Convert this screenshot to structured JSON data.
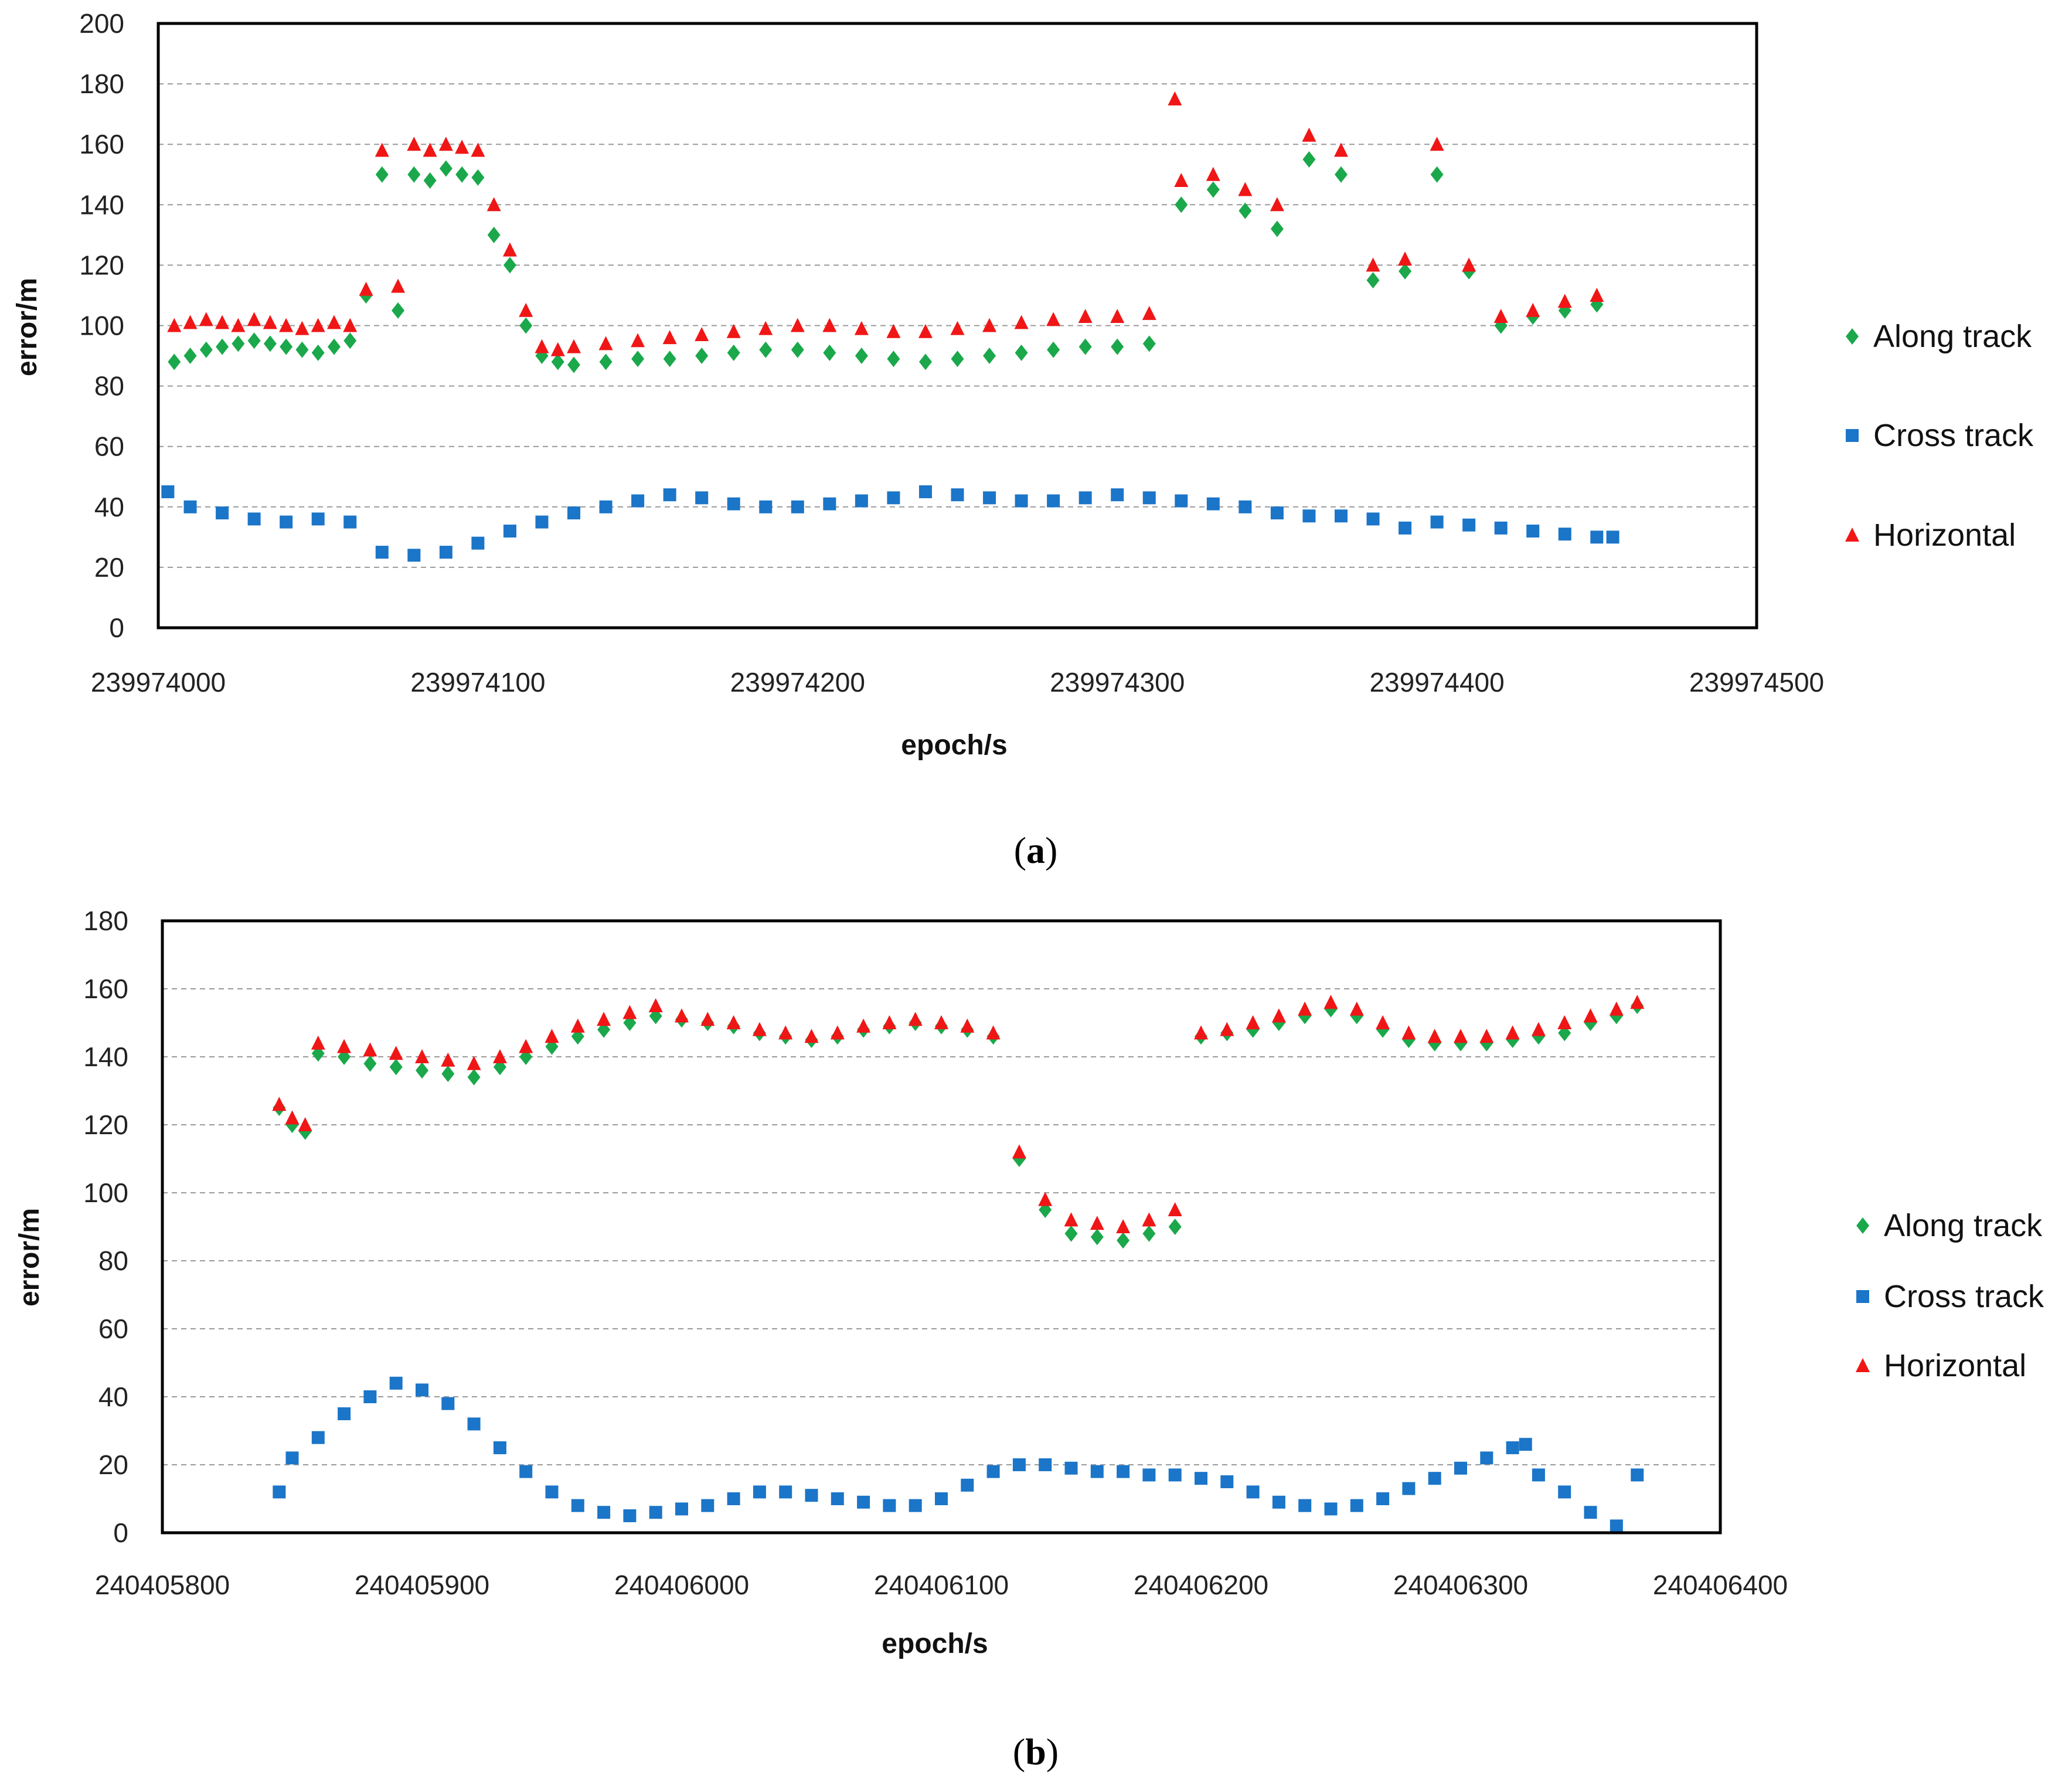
{
  "chart_data": [
    {
      "type": "scatter",
      "panel_label": "a",
      "xlabel": "epoch/s",
      "ylabel": "error/m",
      "xlim": [
        239974000,
        239974500
      ],
      "ylim": [
        0,
        200
      ],
      "xticks": [
        "239974000",
        "239974100",
        "239974200",
        "239974300",
        "239974400",
        "239974500"
      ],
      "yticks": [
        "0",
        "20",
        "40",
        "60",
        "80",
        "100",
        "120",
        "140",
        "160",
        "180",
        "200"
      ],
      "grid": "horizontal dashed",
      "legend_position": "right",
      "series": [
        {
          "name": "Along track",
          "marker": "diamond",
          "color": "#1aa84b",
          "x": [
            239974005,
            239974010,
            239974015,
            239974020,
            239974025,
            239974030,
            239974035,
            239974040,
            239974045,
            239974050,
            239974055,
            239974060,
            239974065,
            239974070,
            239974075,
            239974080,
            239974085,
            239974090,
            239974095,
            239974100,
            239974105,
            239974110,
            239974115,
            239974120,
            239974125,
            239974130,
            239974140,
            239974150,
            239974160,
            239974170,
            239974180,
            239974190,
            239974200,
            239974210,
            239974220,
            239974230,
            239974240,
            239974250,
            239974260,
            239974270,
            239974280,
            239974290,
            239974300,
            239974310,
            239974320,
            239974330,
            239974340,
            239974350,
            239974360,
            239974370,
            239974380,
            239974390,
            239974400,
            239974410,
            239974420,
            239974430,
            239974440,
            239974450
          ],
          "y": [
            88,
            90,
            92,
            93,
            94,
            95,
            94,
            93,
            92,
            91,
            93,
            95,
            110,
            150,
            105,
            150,
            148,
            152,
            150,
            149,
            130,
            120,
            100,
            90,
            88,
            87,
            88,
            89,
            89,
            90,
            91,
            92,
            92,
            91,
            90,
            89,
            88,
            89,
            90,
            91,
            92,
            93,
            93,
            94,
            140,
            145,
            138,
            132,
            155,
            150,
            115,
            118,
            150,
            118,
            100,
            103,
            105,
            107
          ]
        },
        {
          "name": "Cross track",
          "marker": "square",
          "color": "#1b75c8",
          "x": [
            239974003,
            239974010,
            239974020,
            239974030,
            239974040,
            239974050,
            239974060,
            239974070,
            239974080,
            239974090,
            239974100,
            239974110,
            239974120,
            239974130,
            239974140,
            239974150,
            239974160,
            239974170,
            239974180,
            239974190,
            239974200,
            239974210,
            239974220,
            239974230,
            239974240,
            239974250,
            239974260,
            239974270,
            239974280,
            239974290,
            239974300,
            239974310,
            239974320,
            239974330,
            239974340,
            239974350,
            239974360,
            239974370,
            239974380,
            239974390,
            239974400,
            239974410,
            239974420,
            239974430,
            239974440,
            239974450,
            239974455
          ],
          "y": [
            45,
            40,
            38,
            36,
            35,
            36,
            35,
            25,
            24,
            25,
            28,
            32,
            35,
            38,
            40,
            42,
            44,
            43,
            41,
            40,
            40,
            41,
            42,
            43,
            45,
            44,
            43,
            42,
            42,
            43,
            44,
            43,
            42,
            41,
            40,
            38,
            37,
            37,
            36,
            33,
            35,
            34,
            33,
            32,
            31,
            30,
            30
          ]
        },
        {
          "name": "Horizontal",
          "marker": "triangle",
          "color": "#f01616",
          "x": [
            239974005,
            239974010,
            239974015,
            239974020,
            239974025,
            239974030,
            239974035,
            239974040,
            239974045,
            239974050,
            239974055,
            239974060,
            239974065,
            239974070,
            239974075,
            239974080,
            239974085,
            239974090,
            239974095,
            239974100,
            239974105,
            239974110,
            239974115,
            239974120,
            239974125,
            239974130,
            239974140,
            239974150,
            239974160,
            239974170,
            239974180,
            239974190,
            239974200,
            239974210,
            239974220,
            239974230,
            239974240,
            239974250,
            239974260,
            239974270,
            239974280,
            239974290,
            239974300,
            239974310,
            239974318,
            239974320,
            239974330,
            239974340,
            239974350,
            239974360,
            239974370,
            239974380,
            239974390,
            239974400,
            239974410,
            239974420,
            239974430,
            239974440,
            239974450
          ],
          "y": [
            100,
            101,
            102,
            101,
            100,
            102,
            101,
            100,
            99,
            100,
            101,
            100,
            112,
            158,
            113,
            160,
            158,
            160,
            159,
            158,
            140,
            125,
            105,
            93,
            92,
            93,
            94,
            95,
            96,
            97,
            98,
            99,
            100,
            100,
            99,
            98,
            98,
            99,
            100,
            101,
            102,
            103,
            103,
            104,
            175,
            148,
            150,
            145,
            140,
            163,
            158,
            120,
            122,
            160,
            120,
            103,
            105,
            108,
            110
          ]
        }
      ]
    },
    {
      "type": "scatter",
      "panel_label": "b",
      "xlabel": "epoch/s",
      "ylabel": "error/m",
      "xlim": [
        240405800,
        240406400
      ],
      "ylim": [
        0,
        180
      ],
      "xticks": [
        "240405800",
        "240405900",
        "240406000",
        "240406100",
        "240406200",
        "240406300",
        "240406400"
      ],
      "yticks": [
        "0",
        "20",
        "40",
        "60",
        "80",
        "100",
        "120",
        "140",
        "160",
        "180"
      ],
      "grid": "horizontal dashed",
      "legend_position": "right",
      "series": [
        {
          "name": "Along track",
          "marker": "diamond",
          "color": "#1aa84b",
          "x": [
            240405845,
            240405850,
            240405855,
            240405860,
            240405870,
            240405880,
            240405890,
            240405900,
            240405910,
            240405920,
            240405930,
            240405940,
            240405950,
            240405960,
            240405970,
            240405980,
            240405990,
            240406000,
            240406010,
            240406020,
            240406030,
            240406040,
            240406050,
            240406060,
            240406070,
            240406080,
            240406090,
            240406100,
            240406110,
            240406120,
            240406130,
            240406140,
            240406150,
            240406160,
            240406170,
            240406180,
            240406190,
            240406200,
            240406210,
            240406220,
            240406230,
            240406240,
            240406250,
            240406260,
            240406270,
            240406280,
            240406290,
            240406300,
            240406310,
            240406320,
            240406330,
            240406340,
            240406350,
            240406360,
            240406368
          ],
          "y": [
            125,
            120,
            118,
            141,
            140,
            138,
            137,
            136,
            135,
            134,
            137,
            140,
            143,
            146,
            148,
            150,
            152,
            151,
            150,
            149,
            147,
            146,
            145,
            146,
            148,
            149,
            150,
            149,
            148,
            146,
            110,
            95,
            88,
            87,
            86,
            88,
            90,
            146,
            147,
            148,
            150,
            152,
            154,
            152,
            148,
            145,
            144,
            144,
            144,
            145,
            146,
            147,
            150,
            152,
            155
          ]
        },
        {
          "name": "Cross track",
          "marker": "square",
          "color": "#1b75c8",
          "x": [
            240405845,
            240405850,
            240405860,
            240405870,
            240405880,
            240405890,
            240405900,
            240405910,
            240405920,
            240405930,
            240405940,
            240405950,
            240405960,
            240405970,
            240405980,
            240405990,
            240406000,
            240406010,
            240406020,
            240406030,
            240406040,
            240406050,
            240406060,
            240406070,
            240406080,
            240406090,
            240406100,
            240406110,
            240406120,
            240406130,
            240406140,
            240406150,
            240406160,
            240406170,
            240406180,
            240406190,
            240406200,
            240406210,
            240406220,
            240406230,
            240406240,
            240406250,
            240406260,
            240406270,
            240406280,
            240406290,
            240406300,
            240406310,
            240406320,
            240406325,
            240406330,
            240406340,
            240406350,
            240406360,
            240406368
          ],
          "y": [
            12,
            22,
            28,
            35,
            40,
            44,
            42,
            38,
            32,
            25,
            18,
            12,
            8,
            6,
            5,
            6,
            7,
            8,
            10,
            12,
            12,
            11,
            10,
            9,
            8,
            8,
            10,
            14,
            18,
            20,
            20,
            19,
            18,
            18,
            17,
            17,
            16,
            15,
            12,
            9,
            8,
            7,
            8,
            10,
            13,
            16,
            19,
            22,
            25,
            26,
            17,
            12,
            6,
            2,
            17
          ]
        },
        {
          "name": "Horizontal",
          "marker": "triangle",
          "color": "#f01616",
          "x": [
            240405845,
            240405850,
            240405855,
            240405860,
            240405870,
            240405880,
            240405890,
            240405900,
            240405910,
            240405920,
            240405930,
            240405940,
            240405950,
            240405960,
            240405970,
            240405980,
            240405990,
            240406000,
            240406010,
            240406020,
            240406030,
            240406040,
            240406050,
            240406060,
            240406070,
            240406080,
            240406090,
            240406100,
            240406110,
            240406120,
            240406130,
            240406140,
            240406150,
            240406160,
            240406170,
            240406180,
            240406190,
            240406200,
            240406210,
            240406220,
            240406230,
            240406240,
            240406250,
            240406260,
            240406270,
            240406280,
            240406290,
            240406300,
            240406310,
            240406320,
            240406330,
            240406340,
            240406350,
            240406360,
            240406368
          ],
          "y": [
            126,
            122,
            120,
            144,
            143,
            142,
            141,
            140,
            139,
            138,
            140,
            143,
            146,
            149,
            151,
            153,
            155,
            152,
            151,
            150,
            148,
            147,
            146,
            147,
            149,
            150,
            151,
            150,
            149,
            147,
            112,
            98,
            92,
            91,
            90,
            92,
            95,
            147,
            148,
            150,
            152,
            154,
            156,
            154,
            150,
            147,
            146,
            146,
            146,
            147,
            148,
            150,
            152,
            154,
            156
          ]
        }
      ]
    }
  ]
}
